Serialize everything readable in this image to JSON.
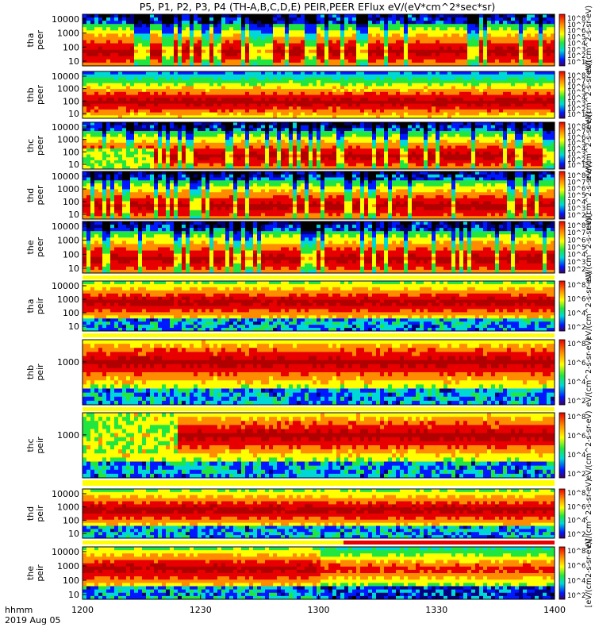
{
  "figure": {
    "title": "P5, P1, P2, P3, P4 (TH-A,B,C,D,E) PEIR,PEER EFlux eV/(eV*cm^2*sec*sr)",
    "time_axis_label": "hhmm",
    "date_label": "2019 Aug 05"
  },
  "colors": {
    "deep_red": "#b00000",
    "red": "#e80000",
    "orange": "#ff8c00",
    "yellow": "#ffff00",
    "green": "#22e640",
    "cyan": "#00d8d8",
    "blue": "#0018ff",
    "dark_blue": "#000080",
    "black": "#000000",
    "flag_yellow": "#ffff00",
    "flag_red": "#e80000"
  },
  "chart_data": {
    "type": "heatmap",
    "x_axis": {
      "label": "hhmm",
      "range": [
        "12:00",
        "14:00"
      ],
      "ticks": [
        "1200",
        "1230",
        "1300",
        "1330",
        "1400"
      ]
    },
    "panels": [
      {
        "id": "tha-peer",
        "ylabel": "tha peer",
        "yticks": [
          "10000",
          "1000",
          "100",
          "10"
        ],
        "colorbar": {
          "ticks": [
            "10^8",
            "10^7",
            "10^6",
            "10^5",
            "10^4",
            "10^3",
            "10^2",
            "10^1"
          ],
          "label": "eV/(cm^2-s-sr-eV)"
        }
      },
      {
        "id": "thb-peer",
        "ylabel": "thb peer",
        "yticks": [
          "10000",
          "1000",
          "100",
          "10"
        ],
        "colorbar": {
          "ticks": [
            "10^8",
            "10^7",
            "10^6",
            "10^5",
            "10^4",
            "10^3",
            "10^2",
            "10^1"
          ],
          "label": "eV/(cm^2-s-sr-eV)"
        }
      },
      {
        "id": "thc-peer",
        "ylabel": "thc peer",
        "yticks": [
          "10000",
          "1000",
          "100",
          "10"
        ],
        "colorbar": {
          "ticks": [
            "10^8",
            "10^7",
            "10^6",
            "10^5",
            "10^4",
            "10^3",
            "10^2",
            "10^1"
          ],
          "label": "eV/(cm^2-s-sr-eV)"
        }
      },
      {
        "id": "thd-peer",
        "ylabel": "thd peer",
        "yticks": [
          "10000",
          "1000",
          "100",
          "10"
        ],
        "colorbar": {
          "ticks": [
            "10^8",
            "10^7",
            "10^6",
            "10^5",
            "10^4",
            "10^3",
            "10^2"
          ],
          "label": "eV/(cm^2-s-sr-eV)"
        }
      },
      {
        "id": "the-peer",
        "ylabel": "the peer",
        "yticks": [
          "10000",
          "1000",
          "100",
          "10"
        ],
        "colorbar": {
          "ticks": [
            "10^8",
            "10^7",
            "10^6",
            "10^5",
            "10^4",
            "10^3",
            "10^2"
          ],
          "label": "eV/(cm^2-s-sr-eV)"
        }
      },
      {
        "id": "tha-peir",
        "ylabel": "tha peir",
        "yticks": [
          "10000",
          "1000",
          "100",
          "10"
        ],
        "colorbar": {
          "ticks": [
            "10^8",
            "10^6",
            "10^4",
            "10^2"
          ],
          "label": "eV/(cm^2-s-sr-eV)"
        }
      },
      {
        "id": "thb-peir",
        "ylabel": "thb peir",
        "yticks": [
          "1000"
        ],
        "colorbar": {
          "ticks": [
            "10^8",
            "10^6",
            "10^4",
            "10^2"
          ],
          "label": "eV/(cm^2-s-sr-eV)"
        }
      },
      {
        "id": "thc-peir",
        "ylabel": "thc peir",
        "yticks": [
          "1000"
        ],
        "colorbar": {
          "ticks": [
            "10^8",
            "10^6",
            "10^4",
            "10^2"
          ],
          "label": "eV/(cm^2-s-sr-eV)"
        }
      },
      {
        "id": "thd-peir",
        "ylabel": "thd peir",
        "yticks": [
          "10000",
          "1000",
          "100",
          "10"
        ],
        "colorbar": {
          "ticks": [
            "10^8",
            "10^6",
            "10^4",
            "10^2"
          ],
          "label": "eV/(cm^2-s-sr-eV)"
        }
      },
      {
        "id": "the-peir",
        "ylabel": "the peir",
        "yticks": [
          "10000",
          "1000",
          "100",
          "10"
        ],
        "colorbar": {
          "ticks": [
            "10^8",
            "10^6",
            "10^4",
            "10^2"
          ],
          "label": "[eV/(cm2-s-sr-eV)]"
        }
      }
    ]
  }
}
